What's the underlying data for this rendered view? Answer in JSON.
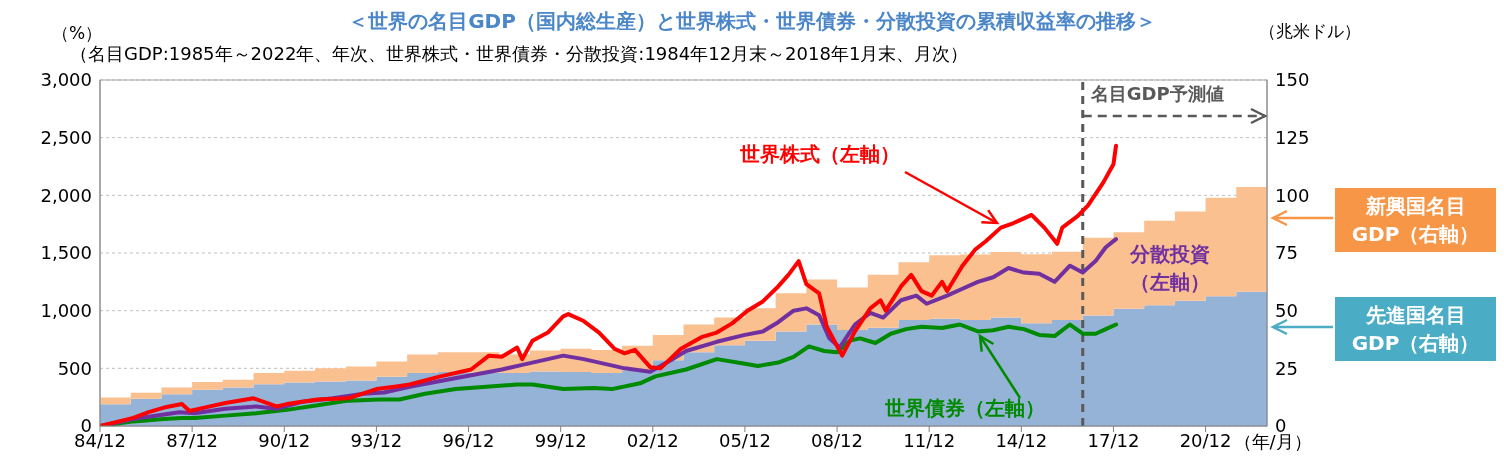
{
  "chart_data": {
    "type": "line",
    "title": "＜世界の名目GDP（国内総生産）と世界株式・世界債券・分散投資の累積収益率の推移＞",
    "subtitle": "（名目GDP:1985年～2022年、年次、世界株式・世界債券・分散投資:1984年12月末～2018年1月末、月次）",
    "ylabel": "（%）",
    "y2label": "（兆米ドル）",
    "xlabel": "（年/月）",
    "xlim": [
      "1984-12",
      "2022-12"
    ],
    "xticks": [
      {
        "value": "1984-12",
        "label": "84/12"
      },
      {
        "value": "1987-12",
        "label": "87/12"
      },
      {
        "value": "1990-12",
        "label": "90/12"
      },
      {
        "value": "1993-12",
        "label": "93/12"
      },
      {
        "value": "1996-12",
        "label": "96/12"
      },
      {
        "value": "1999-12",
        "label": "99/12"
      },
      {
        "value": "2002-12",
        "label": "02/12"
      },
      {
        "value": "2005-12",
        "label": "05/12"
      },
      {
        "value": "2008-12",
        "label": "08/12"
      },
      {
        "value": "2011-12",
        "label": "11/12"
      },
      {
        "value": "2014-12",
        "label": "14/12"
      },
      {
        "value": "2017-12",
        "label": "17/12"
      },
      {
        "value": "2020-12",
        "label": "20/12"
      }
    ],
    "ylim": [
      0,
      3000
    ],
    "yticks": [
      0,
      500,
      {
        "value": 1000,
        "label": "1,000"
      },
      {
        "value": 1500,
        "label": "1,500"
      },
      {
        "value": 2000,
        "label": "2,000"
      },
      {
        "value": 2500,
        "label": "2,500"
      },
      {
        "value": 3000,
        "label": "3,000"
      }
    ],
    "y2lim": [
      0,
      150
    ],
    "y2ticks": [
      0,
      25,
      50,
      75,
      100,
      125,
      150
    ],
    "grid": "y",
    "stacked": true,
    "ref_lines": [
      {
        "axis": "x",
        "value": "2016-12",
        "label": "名目GDP予測値",
        "color": "#595959",
        "line_style": "dashed"
      }
    ],
    "series": [
      {
        "name": "先進国名目GDP（右軸）",
        "type": "area",
        "axis": "y2",
        "color": "#95b3d7",
        "x": [
          "1984-12",
          "1985-12",
          "1986-12",
          "1987-12",
          "1988-12",
          "1989-12",
          "1990-12",
          "1991-12",
          "1992-12",
          "1993-12",
          "1994-12",
          "1995-12",
          "1996-12",
          "1997-12",
          "1998-12",
          "1999-12",
          "2000-12",
          "2001-12",
          "2002-12",
          "2003-12",
          "2004-12",
          "2005-12",
          "2006-12",
          "2007-12",
          "2008-12",
          "2009-12",
          "2010-12",
          "2011-12",
          "2012-12",
          "2013-12",
          "2014-12",
          "2015-12",
          "2016-12",
          "2017-12",
          "2018-12",
          "2019-12",
          "2020-12",
          "2021-12",
          "2022-12"
        ],
        "values": [
          9.4,
          11.8,
          13.8,
          15.7,
          16.7,
          18.1,
          18.9,
          19.3,
          19.7,
          21.3,
          23,
          23.4,
          23.2,
          23,
          23.6,
          23.4,
          23,
          24.2,
          28.5,
          32,
          35,
          37,
          41,
          44,
          41.6,
          42.6,
          46,
          46.5,
          46,
          47,
          44.5,
          46,
          47.9,
          50.8,
          52.3,
          54.3,
          56.3,
          58.2,
          58.2
        ]
      },
      {
        "name": "新興国名目GDP（右軸）",
        "type": "area",
        "axis": "y2",
        "color": "#fac090",
        "x": [
          "1984-12",
          "1985-12",
          "1986-12",
          "1987-12",
          "1988-12",
          "1989-12",
          "1990-12",
          "1991-12",
          "1992-12",
          "1993-12",
          "1994-12",
          "1995-12",
          "1996-12",
          "1997-12",
          "1998-12",
          "1999-12",
          "2000-12",
          "2001-12",
          "2002-12",
          "2003-12",
          "2004-12",
          "2005-12",
          "2006-12",
          "2007-12",
          "2008-12",
          "2009-12",
          "2010-12",
          "2011-12",
          "2012-12",
          "2013-12",
          "2014-12",
          "2015-12",
          "2016-12",
          "2017-12",
          "2018-12",
          "2019-12",
          "2020-12",
          "2021-12",
          "2022-12"
        ],
        "values": [
          3,
          2.6,
          2.9,
          3.4,
          3.3,
          4.9,
          5.1,
          5.7,
          6.1,
          6.7,
          8,
          8.6,
          8.8,
          8,
          9.1,
          10.1,
          10,
          10.6,
          10.9,
          12,
          12,
          14,
          16.5,
          19.5,
          18.4,
          23,
          25,
          27.5,
          28.4,
          28.4,
          30,
          29.5,
          33.7,
          33.2,
          36.7,
          38.7,
          42.7,
          45.4,
          45.4
        ]
      },
      {
        "name": "世界債券（左軸）",
        "color": "#008a00",
        "x": [
          "1984-12",
          "1986-01",
          "1987-01",
          "1987-08",
          "1988-01",
          "1989-01",
          "1990-01",
          "1991-01",
          "1992-01",
          "1993-01",
          "1994-01",
          "1994-09",
          "1995-07",
          "1996-07",
          "1997-07",
          "1998-07",
          "1999-01",
          "2000-01",
          "2001-01",
          "2001-08",
          "2002-07",
          "2003-01",
          "2004-01",
          "2005-01",
          "2005-12",
          "2006-05",
          "2007-01",
          "2007-07",
          "2008-01",
          "2008-07",
          "2008-12",
          "2009-05",
          "2009-09",
          "2010-03",
          "2010-09",
          "2011-03",
          "2011-09",
          "2012-05",
          "2012-12",
          "2013-07",
          "2014-01",
          "2014-07",
          "2015-01",
          "2015-07",
          "2016-01",
          "2016-07",
          "2016-12",
          "2017-05",
          "2017-09",
          "2018-01"
        ],
        "values": [
          0,
          40,
          60,
          70,
          70,
          90,
          110,
          140,
          180,
          220,
          230,
          230,
          280,
          320,
          340,
          360,
          360,
          320,
          330,
          320,
          370,
          430,
          490,
          580,
          540,
          520,
          550,
          600,
          690,
          650,
          640,
          740,
          760,
          720,
          800,
          840,
          860,
          850,
          880,
          820,
          830,
          860,
          840,
          790,
          780,
          880,
          800,
          800,
          840,
          880
        ]
      },
      {
        "name": "分散投資（左軸）",
        "color": "#7030a0",
        "x": [
          "1984-12",
          "1986-01",
          "1987-01",
          "1987-07",
          "1988-01",
          "1989-01",
          "1990-01",
          "1990-09",
          "1991-07",
          "1992-07",
          "1993-07",
          "1994-03",
          "1995-01",
          "1996-01",
          "1997-01",
          "1998-01",
          "1998-09",
          "1999-07",
          "2000-01",
          "2000-09",
          "2001-07",
          "2002-01",
          "2002-11",
          "2003-07",
          "2004-01",
          "2005-01",
          "2005-12",
          "2006-07",
          "2007-01",
          "2007-07",
          "2007-12",
          "2008-05",
          "2008-09",
          "2009-01",
          "2009-07",
          "2010-01",
          "2010-06",
          "2011-01",
          "2011-07",
          "2011-11",
          "2012-07",
          "2013-01",
          "2013-07",
          "2014-01",
          "2014-07",
          "2015-01",
          "2015-07",
          "2016-01",
          "2016-07",
          "2016-12",
          "2017-05",
          "2017-09",
          "2018-01"
        ],
        "values": [
          0,
          60,
          100,
          120,
          110,
          150,
          170,
          150,
          210,
          240,
          280,
          290,
          340,
          390,
          440,
          490,
          530,
          580,
          610,
          580,
          530,
          500,
          470,
          570,
          650,
          730,
          790,
          820,
          900,
          1000,
          1020,
          960,
          760,
          680,
          880,
          980,
          940,
          1090,
          1130,
          1060,
          1130,
          1190,
          1250,
          1290,
          1370,
          1330,
          1320,
          1250,
          1390,
          1330,
          1430,
          1550,
          1620
        ]
      },
      {
        "name": "世界株式（左軸）",
        "color": "#ff0000",
        "x": [
          "1984-12",
          "1986-01",
          "1986-07",
          "1987-01",
          "1987-08",
          "1987-11",
          "1988-07",
          "1989-01",
          "1989-12",
          "1990-09",
          "1991-01",
          "1992-01",
          "1993-01",
          "1993-12",
          "1994-07",
          "1995-01",
          "1996-01",
          "1997-01",
          "1997-08",
          "1998-01",
          "1998-07",
          "1998-09",
          "1999-01",
          "1999-07",
          "2000-01",
          "2000-03",
          "2000-09",
          "2001-03",
          "2001-09",
          "2002-01",
          "2002-05",
          "2002-11",
          "2003-03",
          "2003-11",
          "2004-07",
          "2005-01",
          "2005-07",
          "2006-01",
          "2006-07",
          "2007-01",
          "2007-05",
          "2007-09",
          "2007-12",
          "2008-05",
          "2008-08",
          "2009-02",
          "2009-07",
          "2010-01",
          "2010-05",
          "2010-07",
          "2011-01",
          "2011-05",
          "2011-09",
          "2012-01",
          "2012-05",
          "2012-07",
          "2013-01",
          "2013-06",
          "2013-10",
          "2014-04",
          "2014-09",
          "2015-04",
          "2015-09",
          "2016-02",
          "2016-04",
          "2016-10",
          "2017-02",
          "2017-08",
          "2017-12",
          "2018-01"
        ],
        "values": [
          0,
          70,
          120,
          160,
          190,
          130,
          170,
          200,
          240,
          170,
          190,
          230,
          240,
          320,
          340,
          360,
          430,
          490,
          610,
          600,
          680,
          580,
          740,
          810,
          950,
          970,
          910,
          810,
          670,
          630,
          660,
          510,
          500,
          670,
          770,
          810,
          890,
          1000,
          1080,
          1210,
          1310,
          1430,
          1230,
          1150,
          860,
          610,
          820,
          1020,
          1090,
          1000,
          1210,
          1310,
          1170,
          1130,
          1250,
          1170,
          1390,
          1530,
          1600,
          1720,
          1760,
          1830,
          1720,
          1580,
          1720,
          1820,
          1910,
          2110,
          2270,
          2430
        ]
      }
    ]
  }
}
